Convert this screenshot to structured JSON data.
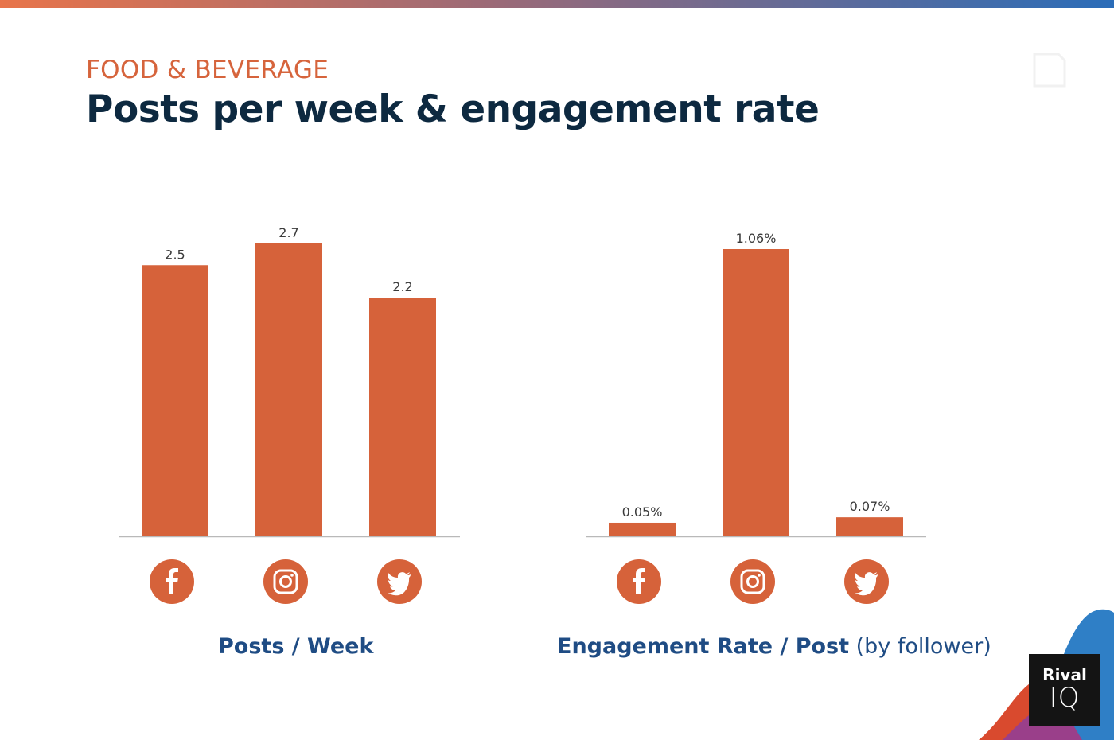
{
  "header": {
    "kicker": "FOOD & BEVERAGE",
    "title": "Posts per week & engagement rate"
  },
  "brand": {
    "line1": "Rival",
    "line2": "IQ"
  },
  "colors": {
    "bar": "#d6623a",
    "title": "#0d2940",
    "kicker": "#d6643c",
    "axis_title": "#1f4c84"
  },
  "chart_data": [
    {
      "type": "bar",
      "categories": [
        "facebook-icon",
        "instagram-icon",
        "twitter-icon"
      ],
      "values": [
        2.5,
        2.7,
        2.2
      ],
      "value_labels": [
        "2.5",
        "2.7",
        "2.2"
      ],
      "xlabel_bold": "Posts / Week",
      "xlabel_light": "",
      "ylim": [
        0,
        2.7
      ]
    },
    {
      "type": "bar",
      "categories": [
        "facebook-icon",
        "instagram-icon",
        "twitter-icon"
      ],
      "values": [
        0.05,
        1.06,
        0.07
      ],
      "value_labels": [
        "0.05%",
        "1.06%",
        "0.07%"
      ],
      "xlabel_bold": "Engagement Rate / Post",
      "xlabel_light": "(by follower)",
      "ylim": [
        0,
        1.06
      ]
    }
  ]
}
